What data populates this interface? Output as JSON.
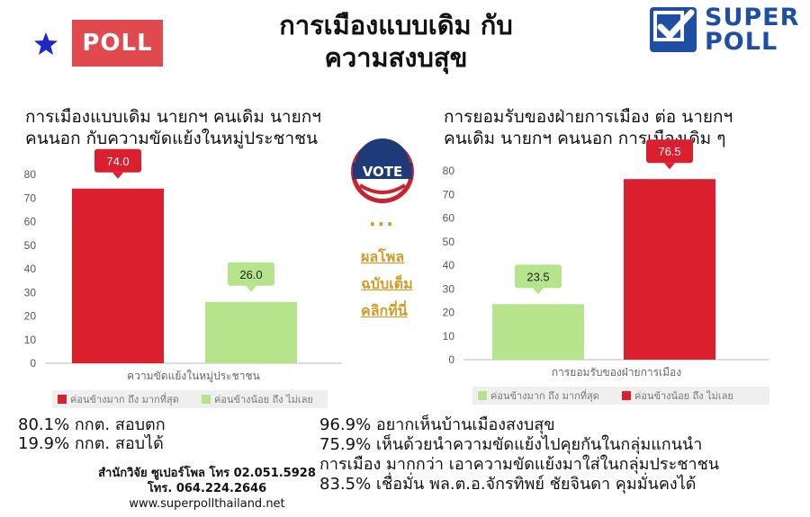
{
  "header": {
    "badge_label": "POLL",
    "title_line1": "การเมืองแบบเดิม กับ",
    "title_line2": "ความสงบสุข",
    "logo_line1": "SUPER",
    "logo_line2": "POLL",
    "star_color": "#1f27c9",
    "brand_color": "#1e4fa5"
  },
  "side": {
    "vote_label": "VOTE",
    "dots": "···",
    "link1": "ผลโพล",
    "link2": "ฉบับเต็ม",
    "link3": "คลิกที่นี่"
  },
  "chart_data": [
    {
      "type": "bar",
      "title": "การเมืองแบบเดิม นายกฯ คนเดิม นายกฯ คนนอก กับความขัดแย้งในหมู่ประชาชน",
      "title_line1": "การเมืองแบบเดิม นายกฯ คนเดิม นายกฯ",
      "title_line2": "คนนอก กับความขัดแย้งในหมู่ประชาชน",
      "xlabel": "ความขัดแย้งในหมู่ประชาชน",
      "categories": [
        "ความขัดแย้งในหมู่ประชาชน"
      ],
      "ylim": [
        0,
        80
      ],
      "yticks": [
        0,
        10,
        20,
        30,
        40,
        50,
        60,
        70,
        80
      ],
      "grid": false,
      "legend_position": "bottom",
      "series": [
        {
          "name": "ค่อนข้างมาก ถึง มากที่สุด",
          "values": [
            74.0
          ],
          "color": "#dc1f2e",
          "label_color": "#dc1f2e",
          "label_text_color": "#ffffff"
        },
        {
          "name": "ค่อนข้างน้อย ถึง ไม่เลย",
          "values": [
            26.0
          ],
          "color": "#b5e48c",
          "label_color": "#b5e48c",
          "label_text_color": "#222222"
        }
      ]
    },
    {
      "type": "bar",
      "title": "การยอมรับของฝ่ายการเมือง ต่อ นายกฯ คนเดิม นายกฯ คนนอก การเมืองเดิม ๆ",
      "title_line1": "การยอมรับของฝ่ายการเมือง ต่อ นายกฯ",
      "title_line2": "คนเดิม นายกฯ คนนอก การเมืองเดิม ๆ",
      "xlabel": "การยอมรับของฝ่ายการเมือง",
      "categories": [
        "การยอมรับของฝ่ายการเมือง"
      ],
      "ylim": [
        0,
        80
      ],
      "yticks": [
        0,
        10,
        20,
        30,
        40,
        50,
        60,
        70,
        80
      ],
      "grid": false,
      "legend_position": "bottom",
      "series": [
        {
          "name": "ค่อนข้างมาก ถึง มากที่สุด",
          "values": [
            23.5
          ],
          "color": "#b5e48c",
          "label_color": "#b5e48c",
          "label_text_color": "#222222"
        },
        {
          "name": "ค่อนข้างน้อย ถึง ไม่เลย",
          "values": [
            76.5
          ],
          "color": "#dc1f2e",
          "label_color": "#dc1f2e",
          "label_text_color": "#ffffff"
        }
      ]
    }
  ],
  "stats_left": {
    "line1": "80.1% กกต. สอบตก",
    "line2": "19.9% กกต. สอบได้"
  },
  "contact": {
    "line1": "สำนักวิจัย ซูเปอร์โพล โทร 02.051.5928",
    "line2": "โทร. 064.224.2646",
    "line3": "www.superpollthailand.net"
  },
  "stats_right": {
    "line1": "96.9% อยากเห็นบ้านเมืองสงบสุข",
    "line2": "75.9% เห็นด้วยนำความขัดแย้งไปคุยกันในกลุ่มแกนนำ",
    "line3": "การเมือง มากกว่า เอาความขัดแย้งมาใส่ในกลุ่มประชาชน",
    "line4": "83.5% เชื่อมั่น พล.ต.อ.จักรทิพย์ ชัยจินดา คุมมั่นคงได้"
  }
}
